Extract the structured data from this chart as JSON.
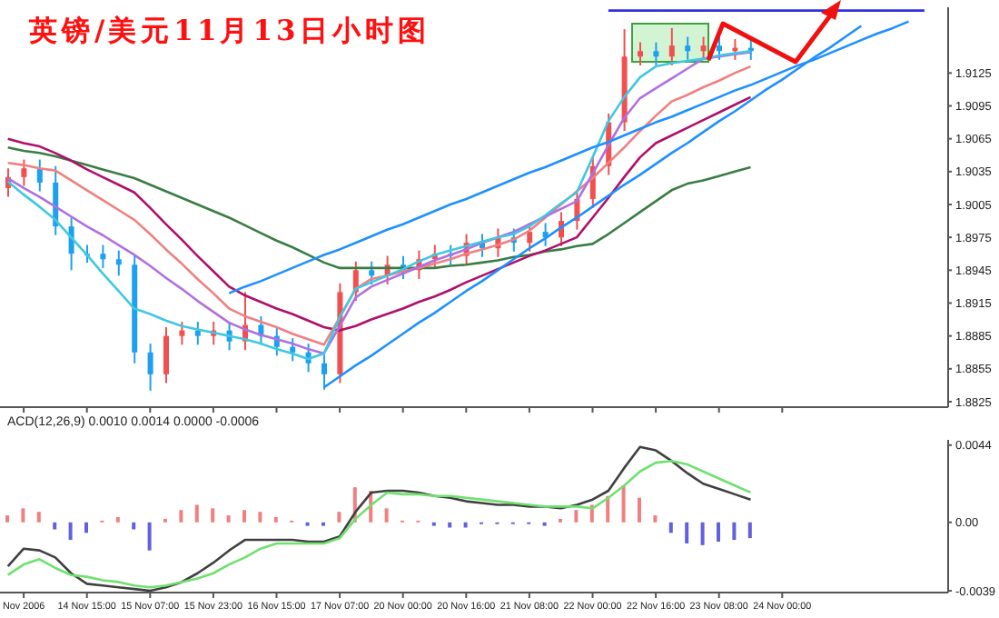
{
  "chart_data": [
    {
      "type": "candlestick",
      "title": "英镑/美元11月13日小时图",
      "tick_labels": "y",
      "ohlc": [
        [
          1.902,
          1.9038,
          1.9012,
          1.903
        ],
        [
          1.903,
          1.9046,
          1.9022,
          1.9038
        ],
        [
          1.9038,
          1.9046,
          1.9017,
          1.9025
        ],
        [
          1.9025,
          1.904,
          1.8977,
          1.8985
        ],
        [
          1.8985,
          1.8993,
          1.8945,
          1.896
        ],
        [
          1.896,
          1.8968,
          1.8952,
          1.896
        ],
        [
          1.896,
          1.8968,
          1.8947,
          1.8955
        ],
        [
          1.8955,
          1.8963,
          1.894,
          1.895
        ],
        [
          1.895,
          1.8958,
          1.886,
          1.887
        ],
        [
          1.887,
          1.8878,
          1.8835,
          1.885
        ],
        [
          1.885,
          1.8893,
          1.8842,
          1.8885
        ],
        [
          1.8885,
          1.8898,
          1.8877,
          1.889
        ],
        [
          1.889,
          1.8898,
          1.8877,
          1.8885
        ],
        [
          1.8885,
          1.8898,
          1.8877,
          1.889
        ],
        [
          1.889,
          1.8898,
          1.8872,
          1.888
        ],
        [
          1.888,
          1.8925,
          1.8872,
          1.8895
        ],
        [
          1.8895,
          1.8903,
          1.8877,
          1.8885
        ],
        [
          1.8885,
          1.8893,
          1.8867,
          1.8875
        ],
        [
          1.8875,
          1.8883,
          1.8862,
          1.887
        ],
        [
          1.887,
          1.8878,
          1.8852,
          1.886
        ],
        [
          1.886,
          1.8868,
          1.8836,
          1.885
        ],
        [
          1.885,
          1.8933,
          1.8842,
          1.8925
        ],
        [
          1.8925,
          1.8953,
          1.8917,
          1.8945
        ],
        [
          1.8945,
          1.8953,
          1.8932,
          1.894
        ],
        [
          1.894,
          1.8958,
          1.8932,
          1.895
        ],
        [
          1.895,
          1.8958,
          1.8937,
          1.8945
        ],
        [
          1.8945,
          1.8963,
          1.8937,
          1.8955
        ],
        [
          1.8955,
          1.8968,
          1.8947,
          1.896
        ],
        [
          1.896,
          1.8968,
          1.895,
          1.8958
        ],
        [
          1.8958,
          1.8978,
          1.895,
          1.897
        ],
        [
          1.897,
          1.8978,
          1.8957,
          1.8965
        ],
        [
          1.8965,
          1.8983,
          1.8957,
          1.8975
        ],
        [
          1.8975,
          1.8983,
          1.8962,
          1.897
        ],
        [
          1.897,
          1.8988,
          1.8962,
          1.898
        ],
        [
          1.898,
          1.8988,
          1.8967,
          1.8975
        ],
        [
          1.8975,
          1.8998,
          1.8967,
          1.899
        ],
        [
          1.899,
          1.9018,
          1.8982,
          1.901
        ],
        [
          1.901,
          1.9048,
          1.9002,
          1.904
        ],
        [
          1.904,
          1.9088,
          1.9032,
          1.908
        ],
        [
          1.908,
          1.9165,
          1.9072,
          1.914
        ],
        [
          1.914,
          1.9153,
          1.9132,
          1.9145
        ],
        [
          1.9145,
          1.9153,
          1.9132,
          1.914
        ],
        [
          1.914,
          1.9166,
          1.9132,
          1.915
        ],
        [
          1.915,
          1.9158,
          1.9137,
          1.9145
        ],
        [
          1.9145,
          1.9158,
          1.9137,
          1.915
        ],
        [
          1.915,
          1.9158,
          1.9137,
          1.9145
        ],
        [
          1.9145,
          1.9156,
          1.9137,
          1.9148
        ],
        [
          1.9148,
          1.9156,
          1.9137,
          1.9145
        ],
        null,
        null,
        null,
        null,
        null,
        null,
        null,
        null,
        null,
        null,
        null,
        null
      ],
      "colors": [
        "#f05050",
        "#f05050",
        "#1ea0f0",
        "#1ea0f0",
        "#1ea0f0",
        "#1ea0f0",
        "#1ea0f0",
        "#1ea0f0",
        "#1ea0f0",
        "#1ea0f0",
        "#f05050",
        "#f05050",
        "#1ea0f0",
        "#f05050",
        "#1ea0f0",
        "#f05050",
        "#1ea0f0",
        "#1ea0f0",
        "#1ea0f0",
        "#1ea0f0",
        "#1ea0f0",
        "#f05050",
        "#f05050",
        "#1ea0f0",
        "#f05050",
        "#1ea0f0",
        "#f05050",
        "#f05050",
        "#1ea0f0",
        "#f05050",
        "#1ea0f0",
        "#f05050",
        "#1ea0f0",
        "#f05050",
        "#1ea0f0",
        "#f05050",
        "#f05050",
        "#f05050",
        "#f05050",
        "#f05050",
        "#f05050",
        "#1ea0f0",
        "#f05050",
        "#1ea0f0",
        "#f05050",
        "#1ea0f0",
        "#f05050",
        "#1ea0f0",
        null,
        null,
        null,
        null,
        null,
        null,
        null,
        null,
        null,
        null,
        null,
        null
      ],
      "series": [
        {
          "type": "line",
          "color": "#3a7d44",
          "values": [
            1.9057,
            1.9054,
            1.9052,
            1.9049,
            1.9045,
            1.9041,
            1.9037,
            1.9033,
            1.9029,
            1.9023,
            1.9017,
            1.9011,
            1.9005,
            1.8999,
            1.8993,
            1.8986,
            1.8979,
            1.8972,
            1.8966,
            1.8959,
            1.8952,
            1.8947,
            1.8947,
            1.8947,
            1.8947,
            1.8947,
            1.8947,
            1.8947,
            1.8949,
            1.895,
            1.8952,
            1.8954,
            1.8957,
            1.8959,
            1.8962,
            1.8964,
            1.8967,
            1.8969,
            1.8978,
            1.8988,
            1.8998,
            1.9008,
            1.9018,
            1.9024,
            1.9027,
            1.9031,
            1.9035,
            1.9039,
            null,
            null,
            null,
            null,
            null,
            null,
            null,
            null,
            null,
            null,
            null,
            null
          ]
        },
        {
          "type": "line",
          "color": "#b0106a",
          "values": [
            1.9065,
            1.9061,
            1.9058,
            1.9052,
            1.9045,
            1.9037,
            1.903,
            1.9023,
            1.9016,
            1.9002,
            1.8987,
            1.8973,
            1.8958,
            1.8944,
            1.893,
            1.8922,
            1.8916,
            1.891,
            1.8905,
            1.8899,
            1.8893,
            1.889,
            1.8894,
            1.89,
            1.8905,
            1.891,
            1.8916,
            1.8921,
            1.8927,
            1.8934,
            1.894,
            1.8946,
            1.8952,
            1.8958,
            1.8963,
            1.8969,
            1.8975,
            1.8993,
            1.9011,
            1.903,
            1.9048,
            1.9061,
            1.9068,
            1.9075,
            1.9082,
            1.9089,
            1.9096,
            1.9103,
            null,
            null,
            null,
            null,
            null,
            null,
            null,
            null,
            null,
            null,
            null,
            null
          ]
        },
        {
          "type": "line",
          "color": "#f08080",
          "values": [
            1.9043,
            1.9041,
            1.9038,
            1.9036,
            1.9027,
            1.9018,
            1.9009,
            1.9,
            1.8991,
            1.8978,
            1.8964,
            1.8951,
            1.8937,
            1.8924,
            1.891,
            1.8903,
            1.8898,
            1.8893,
            1.8887,
            1.8882,
            1.8877,
            1.8902,
            1.8928,
            1.8937,
            1.894,
            1.8944,
            1.8947,
            1.8951,
            1.8955,
            1.896,
            1.8964,
            1.8968,
            1.8973,
            1.8981,
            1.8993,
            1.9005,
            1.9017,
            1.9029,
            1.9043,
            1.9057,
            1.9072,
            1.9086,
            1.9099,
            1.9105,
            1.9112,
            1.9118,
            1.9125,
            1.9131,
            null,
            null,
            null,
            null,
            null,
            null,
            null,
            null,
            null,
            null,
            null,
            null
          ]
        },
        {
          "type": "line",
          "color": "#b070e0",
          "values": [
            1.9029,
            1.902,
            1.9012,
            1.9003,
            1.8994,
            1.8985,
            1.8977,
            1.8968,
            1.8959,
            1.8949,
            1.8938,
            1.8928,
            1.8917,
            1.8907,
            1.8897,
            1.8891,
            1.8886,
            1.8882,
            1.8878,
            1.8873,
            1.8869,
            1.8894,
            1.892,
            1.893,
            1.8936,
            1.8942,
            1.8948,
            1.8954,
            1.8959,
            1.8964,
            1.897,
            1.8975,
            1.898,
            1.8987,
            1.8994,
            1.9001,
            1.9008,
            1.9033,
            1.9059,
            1.9084,
            1.9102,
            1.9111,
            1.912,
            1.9129,
            1.9138,
            1.914,
            1.9142,
            1.9144,
            null,
            null,
            null,
            null,
            null,
            null,
            null,
            null,
            null,
            null,
            null,
            null
          ]
        },
        {
          "type": "line",
          "color": "#40c8e0",
          "values": [
            1.9026,
            1.9014,
            1.9003,
            1.8991,
            1.8975,
            1.8959,
            1.8942,
            1.8926,
            1.891,
            1.8905,
            1.8899,
            1.8894,
            1.8891,
            1.8888,
            1.8885,
            1.8882,
            1.8878,
            1.8873,
            1.8869,
            1.8864,
            1.8869,
            1.8902,
            1.8928,
            1.8934,
            1.894,
            1.8946,
            1.8953,
            1.8959,
            1.8963,
            1.8967,
            1.8971,
            1.8975,
            1.8978,
            1.8985,
            1.8995,
            1.9006,
            1.9016,
            1.9048,
            1.9081,
            1.9103,
            1.9121,
            1.9131,
            1.9134,
            1.9136,
            1.9138,
            1.9141,
            1.9143,
            1.9145,
            null,
            null,
            null,
            null,
            null,
            null,
            null,
            null,
            null,
            null,
            null,
            null
          ]
        },
        {
          "type": "line",
          "color": "#1e90ff",
          "values": [
            null,
            null,
            null,
            null,
            null,
            null,
            null,
            null,
            null,
            null,
            null,
            null,
            null,
            null,
            1.8924,
            1.893,
            1.8935,
            1.8941,
            1.8947,
            1.8953,
            1.8959,
            1.8964,
            1.897,
            1.8976,
            1.8982,
            1.8987,
            1.8993,
            1.8999,
            1.9005,
            1.901,
            1.9016,
            1.9022,
            1.9028,
            1.9034,
            1.9039,
            1.9045,
            1.9051,
            1.9057,
            1.9062,
            1.9068,
            1.9074,
            1.908,
            1.9085,
            1.9091,
            1.9097,
            1.9103,
            1.9109,
            1.9114,
            1.912,
            1.9126,
            1.9132,
            1.9137,
            1.9143,
            1.9149,
            1.9155,
            1.9161,
            1.9166,
            1.9172,
            null,
            null
          ]
        },
        {
          "type": "line",
          "color": "#1e90ff",
          "values": [
            null,
            null,
            null,
            null,
            null,
            null,
            null,
            null,
            null,
            null,
            null,
            null,
            null,
            null,
            null,
            null,
            null,
            null,
            null,
            null,
            1.8838,
            1.8848,
            1.8858,
            1.8867,
            1.8877,
            1.8887,
            1.8897,
            1.8906,
            1.8916,
            1.8926,
            1.8935,
            1.8945,
            1.8955,
            1.8965,
            1.8974,
            1.8984,
            1.8993,
            1.9003,
            1.9013,
            1.9023,
            1.9032,
            1.9042,
            1.9052,
            1.9061,
            1.9071,
            1.9081,
            1.909,
            1.91,
            1.911,
            1.9119,
            1.9129,
            1.9139,
            1.9148,
            1.9158,
            1.9168,
            null,
            null,
            null,
            null,
            null
          ]
        },
        {
          "type": "line",
          "color": "#3030e0",
          "values": [
            null,
            null,
            null,
            null,
            null,
            null,
            null,
            null,
            null,
            null,
            null,
            null,
            null,
            null,
            null,
            null,
            null,
            null,
            null,
            null,
            null,
            null,
            null,
            null,
            null,
            null,
            null,
            null,
            null,
            null,
            null,
            null,
            null,
            null,
            null,
            null,
            null,
            null,
            1.9182,
            1.9182,
            1.9182,
            1.9182,
            1.9182,
            1.9182,
            1.9182,
            1.9182,
            1.9182,
            1.9182,
            1.9182,
            1.9182,
            1.9182,
            1.9182,
            1.9182,
            1.9182,
            1.9182,
            1.9182,
            1.9182,
            1.9182,
            1.9182,
            null
          ]
        }
      ],
      "ylim": [
        1.882,
        1.9185
      ],
      "yticks": [
        1.9125,
        1.9095,
        1.9065,
        1.9035,
        1.9005,
        1.8975,
        1.8945,
        1.8915,
        1.8885,
        1.8855,
        1.8825
      ]
    },
    {
      "type": "bar",
      "title": "ACD(12,26,9) 0.0010 0.0014 0.0000 -0.0006",
      "categories": [
        null,
        "Nov 2006",
        null,
        null,
        null,
        "14 Nov 15:00",
        null,
        null,
        null,
        "15 Nov 07:00",
        null,
        null,
        null,
        "15 Nov 23:00",
        null,
        null,
        null,
        "16 Nov 15:00",
        null,
        null,
        null,
        "17 Nov 07:00",
        null,
        null,
        null,
        "20 Nov 00:00",
        null,
        null,
        null,
        "20 Nov 16:00",
        null,
        null,
        null,
        "21 Nov 08:00",
        null,
        null,
        null,
        "22 Nov 00:00",
        null,
        null,
        null,
        "22 Nov 16:00",
        null,
        null,
        null,
        "23 Nov 08:00",
        null,
        null,
        null,
        "24 Nov 00:00",
        null,
        null,
        null,
        null,
        null,
        null,
        null,
        null,
        null,
        null
      ],
      "values": [
        0.0004,
        0.0008,
        0.0006,
        -0.0004,
        -0.001,
        -0.0006,
        0.0001,
        0.0003,
        -0.0004,
        -0.0016,
        0.0002,
        0.0007,
        0.001,
        0.0008,
        0.0004,
        0.0007,
        0.0006,
        0.0003,
        0.0001,
        -0.0002,
        -0.0002,
        0.0006,
        0.002,
        0.0018,
        0.0008,
        0.0001,
        0.0001,
        -0.0002,
        -0.0003,
        -0.0003,
        -0.0001,
        -0.0001,
        -0.0001,
        -0.0001,
        -0.0002,
        0.0002,
        0.0007,
        0.001,
        0.0015,
        0.0021,
        0.0014,
        0.0004,
        -0.0006,
        -0.0012,
        -0.0013,
        -0.0011,
        -0.001,
        -0.0009,
        null,
        null,
        null,
        null,
        null,
        null,
        null,
        null,
        null,
        null,
        null,
        null
      ],
      "colors": [
        "#f08080",
        "#f08080",
        "#f08080",
        "#6060e0",
        "#6060e0",
        "#6060e0",
        "#f08080",
        "#f08080",
        "#6060e0",
        "#6060e0",
        "#f08080",
        "#f08080",
        "#f08080",
        "#f08080",
        "#f08080",
        "#f08080",
        "#f08080",
        "#f08080",
        "#f08080",
        "#6060e0",
        "#6060e0",
        "#f08080",
        "#f08080",
        "#f08080",
        "#f08080",
        "#f08080",
        "#f08080",
        "#6060e0",
        "#6060e0",
        "#6060e0",
        "#6060e0",
        "#6060e0",
        "#6060e0",
        "#6060e0",
        "#6060e0",
        "#f08080",
        "#f08080",
        "#f08080",
        "#f08080",
        "#f08080",
        "#f08080",
        "#f08080",
        "#6060e0",
        "#6060e0",
        "#6060e0",
        "#6060e0",
        "#6060e0",
        "#6060e0",
        null,
        null,
        null,
        null,
        null,
        null,
        null,
        null,
        null,
        null,
        null,
        null
      ],
      "series": [
        {
          "type": "line",
          "color": "#404040",
          "values": [
            -0.0025,
            -0.0015,
            -0.0016,
            -0.002,
            -0.0029,
            -0.0035,
            -0.0036,
            -0.0037,
            -0.0038,
            -0.0039,
            -0.0037,
            -0.0034,
            -0.0029,
            -0.0023,
            -0.0016,
            -0.001,
            -0.001,
            -0.001,
            -0.001,
            -0.0011,
            -0.0011,
            -0.0008,
            0.0006,
            0.0017,
            0.0018,
            0.0018,
            0.0017,
            0.0015,
            0.0014,
            0.0012,
            0.0011,
            0.001,
            0.001,
            0.0009,
            0.0009,
            0.0008,
            0.001,
            0.0013,
            0.0018,
            0.0031,
            0.0043,
            0.0041,
            0.0035,
            0.0028,
            0.0022,
            0.0019,
            0.0016,
            0.0013,
            null,
            null,
            null,
            null,
            null,
            null,
            null,
            null,
            null,
            null,
            null,
            null
          ]
        },
        {
          "type": "line",
          "color": "#70e070",
          "values": [
            -0.003,
            -0.0024,
            -0.0021,
            -0.0026,
            -0.003,
            -0.0031,
            -0.0033,
            -0.0034,
            -0.0036,
            -0.0037,
            -0.0036,
            -0.0034,
            -0.0032,
            -0.0029,
            -0.0024,
            -0.002,
            -0.0015,
            -0.0012,
            -0.0012,
            -0.0012,
            -0.0012,
            -0.0009,
            0.0002,
            0.001,
            0.0017,
            0.0016,
            0.0016,
            0.0015,
            0.0015,
            0.0014,
            0.0013,
            0.0012,
            0.0011,
            0.001,
            0.0009,
            0.0009,
            0.0009,
            0.0008,
            0.0014,
            0.0021,
            0.0029,
            0.0034,
            0.0035,
            0.0033,
            0.0029,
            0.0025,
            0.0021,
            0.0017,
            null,
            null,
            null,
            null,
            null,
            null,
            null,
            null,
            null,
            null,
            null,
            null
          ]
        }
      ],
      "ylim": [
        -0.004,
        0.0047
      ],
      "yticks": [
        0.0044,
        {
          "value": 0,
          "label": "0.00"
        },
        -0.0039
      ]
    }
  ]
}
